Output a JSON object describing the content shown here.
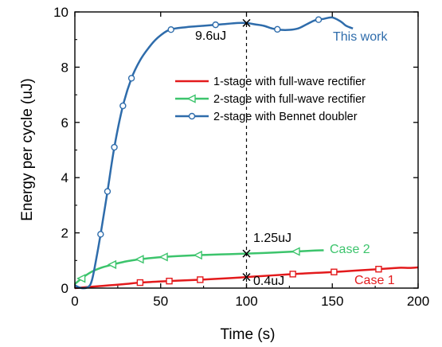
{
  "chart_data": {
    "type": "line",
    "xlabel": "Time (s)",
    "ylabel": "Energy per cycle (uJ)",
    "xlim": [
      0,
      200
    ],
    "ylim": [
      0,
      10
    ],
    "xticks": [
      0,
      50,
      100,
      150,
      200
    ],
    "yticks": [
      0,
      2,
      4,
      6,
      8,
      10
    ],
    "grid": false,
    "legend_position": "center-right",
    "series": [
      {
        "name": "1-stage with full-wave rectifier",
        "color": "#e31a1c",
        "marker": "square",
        "x": [
          0,
          10,
          20,
          30,
          38,
          50,
          60,
          75,
          90,
          100,
          110,
          120,
          130,
          140,
          150,
          160,
          170,
          178,
          185,
          190,
          195,
          200
        ],
        "y": [
          0.0,
          0.05,
          0.1,
          0.15,
          0.2,
          0.24,
          0.27,
          0.31,
          0.36,
          0.4,
          0.44,
          0.48,
          0.52,
          0.55,
          0.58,
          0.62,
          0.66,
          0.69,
          0.72,
          0.74,
          0.73,
          0.75
        ],
        "marker_x": [
          38,
          55,
          73,
          127,
          151,
          177
        ]
      },
      {
        "name": "2-stage with full-wave rectifier",
        "color": "#3cc46c",
        "marker": "triangle-left",
        "x": [
          0,
          5,
          10,
          15,
          20,
          25,
          30,
          35,
          40,
          50,
          60,
          70,
          80,
          90,
          100,
          110,
          120,
          130,
          140,
          145
        ],
        "y": [
          0.15,
          0.4,
          0.6,
          0.73,
          0.82,
          0.9,
          0.97,
          1.02,
          1.06,
          1.12,
          1.16,
          1.19,
          1.21,
          1.23,
          1.25,
          1.27,
          1.3,
          1.33,
          1.36,
          1.37
        ],
        "marker_x": [
          4,
          22,
          38,
          52,
          72,
          129
        ]
      },
      {
        "name": "2-stage with Bennet doubler",
        "color": "#2e6cab",
        "marker": "circle",
        "x": [
          0,
          4,
          8,
          10,
          12,
          15,
          19,
          23,
          28,
          33,
          38,
          43,
          48,
          55,
          65,
          75,
          85,
          95,
          100,
          105,
          110,
          115,
          120,
          125,
          130,
          135,
          140,
          145,
          150,
          155,
          158,
          162
        ],
        "y": [
          0.1,
          0.0,
          0.05,
          0.3,
          0.9,
          1.95,
          3.5,
          5.1,
          6.6,
          7.6,
          8.25,
          8.7,
          9.05,
          9.35,
          9.45,
          9.5,
          9.55,
          9.6,
          9.6,
          9.55,
          9.5,
          9.4,
          9.35,
          9.35,
          9.4,
          9.55,
          9.7,
          9.75,
          9.8,
          9.65,
          9.5,
          9.4
        ],
        "marker_x": [
          15,
          19,
          23,
          28,
          33,
          56,
          82,
          118,
          142
        ]
      }
    ],
    "vline": {
      "x": 100,
      "style": "dashed",
      "y_from": 0,
      "y_to": 9.6
    },
    "annotations": [
      {
        "text": "9.6uJ",
        "x": 100,
        "y": 9.6
      },
      {
        "text": "1.25uJ",
        "x": 100,
        "y": 1.25
      },
      {
        "text": "0.4uJ",
        "x": 100,
        "y": 0.4
      },
      {
        "text": "This work",
        "series": 2
      },
      {
        "text": "Case 2",
        "series": 1
      },
      {
        "text": "Case 1",
        "series": 0
      }
    ]
  }
}
